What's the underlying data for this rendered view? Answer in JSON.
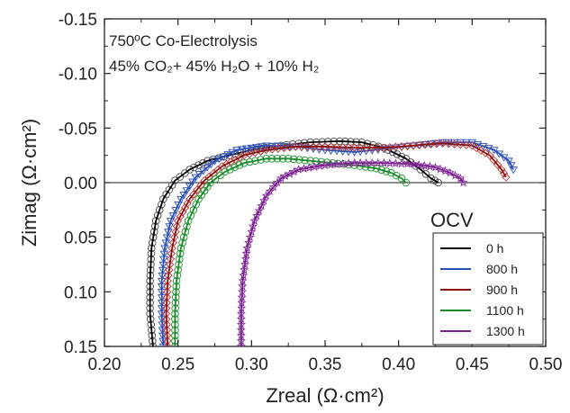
{
  "chart_data": {
    "type": "line",
    "title": "",
    "annotations": {
      "line1": "750ºC Co-Electrolysis",
      "line2": "45% CO₂+ 45% H₂O + 10% H₂"
    },
    "xlabel": "Zreal (Ω·cm²)",
    "ylabel": "Zimag (Ω·cm²)",
    "xlim": [
      0.2,
      0.5
    ],
    "ylim": [
      0.15,
      -0.15
    ],
    "y_inverted": true,
    "x_ticks": [
      "0.20",
      "0.25",
      "0.30",
      "0.35",
      "0.40",
      "0.45",
      "0.50"
    ],
    "y_ticks": [
      "-0.15",
      "-0.10",
      "-0.05",
      "0.00",
      "0.05",
      "0.10",
      "0.15"
    ],
    "zero_line": true,
    "legend_title": "OCV",
    "legend_position": "bottom-right",
    "series": [
      {
        "name": "0 h",
        "color": "#000000",
        "marker": "circle",
        "marker_color": "#555555",
        "points": [
          [
            0.233,
            0.15
          ],
          [
            0.231,
            0.12
          ],
          [
            0.231,
            0.09
          ],
          [
            0.232,
            0.06
          ],
          [
            0.235,
            0.035
          ],
          [
            0.24,
            0.015
          ],
          [
            0.248,
            -0.002
          ],
          [
            0.258,
            -0.012
          ],
          [
            0.27,
            -0.02
          ],
          [
            0.285,
            -0.025
          ],
          [
            0.3,
            -0.03
          ],
          [
            0.32,
            -0.034
          ],
          [
            0.34,
            -0.037
          ],
          [
            0.36,
            -0.038
          ],
          [
            0.375,
            -0.037
          ],
          [
            0.39,
            -0.032
          ],
          [
            0.405,
            -0.022
          ],
          [
            0.415,
            -0.012
          ],
          [
            0.422,
            -0.004
          ],
          [
            0.427,
            0.0
          ]
        ]
      },
      {
        "name": "800 h",
        "color": "#2b4fb8",
        "marker": "triangle-down",
        "marker_color": "#3a5cc0",
        "points": [
          [
            0.24,
            0.15
          ],
          [
            0.239,
            0.12
          ],
          [
            0.239,
            0.09
          ],
          [
            0.241,
            0.06
          ],
          [
            0.245,
            0.035
          ],
          [
            0.252,
            0.015
          ],
          [
            0.262,
            -0.005
          ],
          [
            0.275,
            -0.02
          ],
          [
            0.29,
            -0.03
          ],
          [
            0.31,
            -0.034
          ],
          [
            0.33,
            -0.033
          ],
          [
            0.35,
            -0.03
          ],
          [
            0.37,
            -0.028
          ],
          [
            0.39,
            -0.031
          ],
          [
            0.41,
            -0.034
          ],
          [
            0.43,
            -0.037
          ],
          [
            0.45,
            -0.037
          ],
          [
            0.465,
            -0.03
          ],
          [
            0.475,
            -0.02
          ],
          [
            0.478,
            -0.012
          ]
        ]
      },
      {
        "name": "900 h",
        "color": "#8b1010",
        "marker": "diamond",
        "marker_color": "#c04040",
        "points": [
          [
            0.243,
            0.15
          ],
          [
            0.242,
            0.12
          ],
          [
            0.243,
            0.09
          ],
          [
            0.246,
            0.06
          ],
          [
            0.25,
            0.035
          ],
          [
            0.258,
            0.015
          ],
          [
            0.268,
            -0.002
          ],
          [
            0.28,
            -0.015
          ],
          [
            0.295,
            -0.025
          ],
          [
            0.31,
            -0.03
          ],
          [
            0.33,
            -0.033
          ],
          [
            0.35,
            -0.033
          ],
          [
            0.37,
            -0.032
          ],
          [
            0.39,
            -0.032
          ],
          [
            0.41,
            -0.034
          ],
          [
            0.43,
            -0.036
          ],
          [
            0.45,
            -0.034
          ],
          [
            0.462,
            -0.025
          ],
          [
            0.47,
            -0.012
          ],
          [
            0.473,
            -0.005
          ]
        ]
      },
      {
        "name": "1100 h",
        "color": "#1a8a2a",
        "marker": "circle",
        "marker_color": "#2a9a3a",
        "points": [
          [
            0.248,
            0.15
          ],
          [
            0.248,
            0.12
          ],
          [
            0.249,
            0.09
          ],
          [
            0.252,
            0.06
          ],
          [
            0.257,
            0.035
          ],
          [
            0.264,
            0.015
          ],
          [
            0.272,
            0.0
          ],
          [
            0.282,
            -0.01
          ],
          [
            0.295,
            -0.018
          ],
          [
            0.31,
            -0.022
          ],
          [
            0.325,
            -0.022
          ],
          [
            0.34,
            -0.02
          ],
          [
            0.355,
            -0.018
          ],
          [
            0.37,
            -0.016
          ],
          [
            0.385,
            -0.013
          ],
          [
            0.395,
            -0.009
          ],
          [
            0.402,
            -0.004
          ],
          [
            0.405,
            0.0
          ]
        ]
      },
      {
        "name": "1300 h",
        "color": "#7a1f8f",
        "marker": "star",
        "marker_color": "#8a2f9f",
        "points": [
          [
            0.293,
            0.15
          ],
          [
            0.293,
            0.12
          ],
          [
            0.294,
            0.09
          ],
          [
            0.297,
            0.06
          ],
          [
            0.302,
            0.035
          ],
          [
            0.31,
            0.012
          ],
          [
            0.32,
            -0.004
          ],
          [
            0.332,
            -0.012
          ],
          [
            0.35,
            -0.016
          ],
          [
            0.37,
            -0.018
          ],
          [
            0.39,
            -0.018
          ],
          [
            0.41,
            -0.017
          ],
          [
            0.425,
            -0.014
          ],
          [
            0.435,
            -0.009
          ],
          [
            0.442,
            -0.004
          ],
          [
            0.444,
            0.0
          ]
        ]
      }
    ]
  }
}
